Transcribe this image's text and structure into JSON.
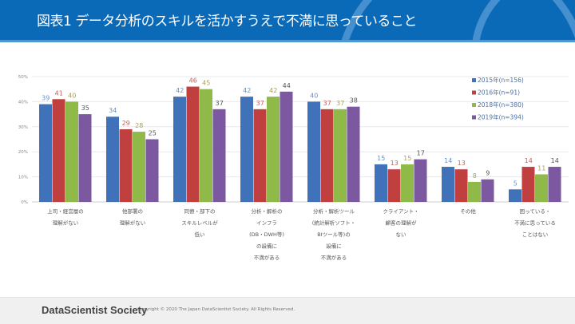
{
  "header": {
    "title": "図表1 データ分析のスキルを活かすうえで不満に思っていること"
  },
  "footer": {
    "brand": "DataScientist Society",
    "copyright": "Copyright © 2020 The Japan DataScientist Society. All Rights Reserved."
  },
  "chart_data": {
    "type": "bar",
    "title": "",
    "xlabel": "",
    "ylabel": "",
    "ylim": [
      0,
      50
    ],
    "yticks": [
      "0%",
      "10%",
      "20%",
      "30%",
      "40%",
      "50%"
    ],
    "grid": true,
    "legend_position": "top-right",
    "categories": [
      [
        "上司・経営層の",
        "理解がない"
      ],
      [
        "他部署の",
        "理解がない"
      ],
      [
        "同僚・部下の",
        "スキルレベルが",
        "低い"
      ],
      [
        "分析・解析の",
        "インフラ",
        "(DB・DWH等)",
        "の設備に",
        "不満がある"
      ],
      [
        "分析・解析ツール",
        "(統計解析ソフト・",
        "BIツール等)の",
        "設備に",
        "不満がある"
      ],
      [
        "クライアント・",
        "顧客の理解が",
        "ない"
      ],
      [
        "その他"
      ],
      [
        "困っている・",
        "不満に思っている",
        "ことはない"
      ]
    ],
    "series": [
      {
        "name": "2015年(n=156)",
        "color": "#3f72b8",
        "label_color": "#6a8fc4",
        "values": [
          39,
          34,
          42,
          42,
          40,
          15,
          14,
          5
        ]
      },
      {
        "name": "2016年(n=91)",
        "color": "#c0403f",
        "label_color": "#c4605e",
        "values": [
          41,
          29,
          46,
          37,
          37,
          13,
          13,
          14
        ]
      },
      {
        "name": "2018年(n=380)",
        "color": "#8fba4a",
        "label_color": "#a8a060",
        "values": [
          40,
          28,
          45,
          42,
          37,
          15,
          8,
          11
        ]
      },
      {
        "name": "2019年(n=394)",
        "color": "#7b58a0",
        "label_color": "#555555",
        "values": [
          35,
          25,
          37,
          44,
          38,
          17,
          9,
          14
        ]
      }
    ]
  }
}
